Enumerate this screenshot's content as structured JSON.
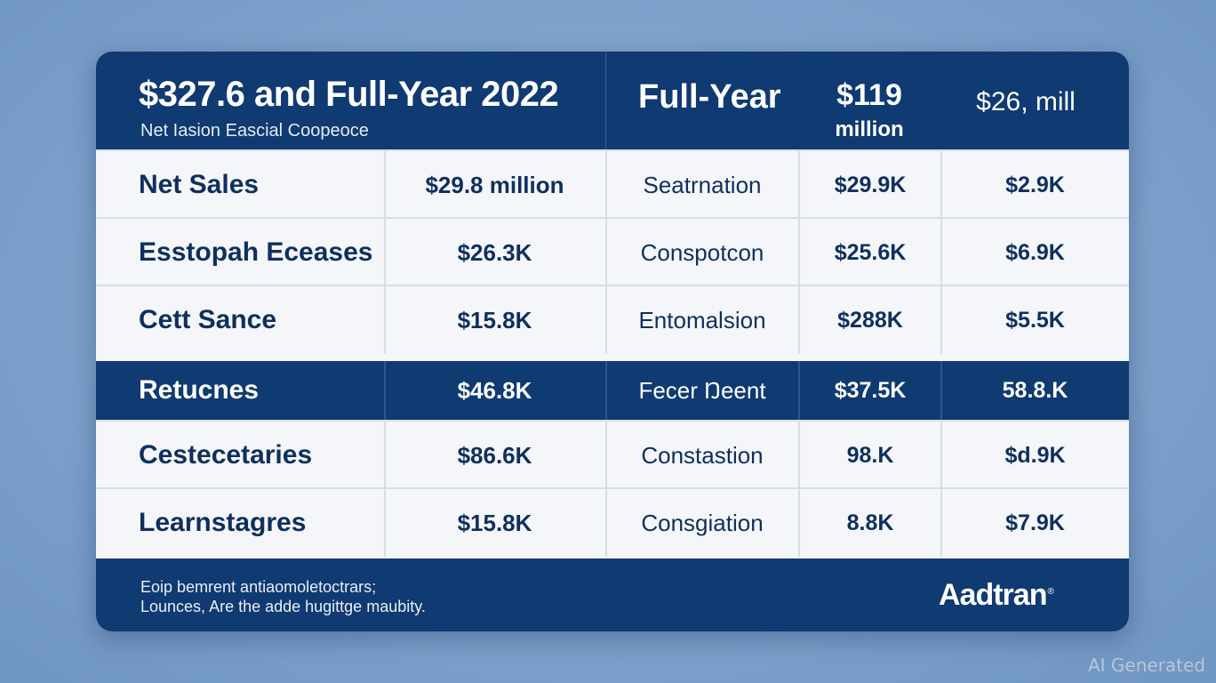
{
  "header": {
    "title": "$327.6 and Full-Year 2022",
    "subtitle": "Net Iasion Eascial Coopeoce",
    "col2": "Full-Year",
    "col3_value": "$119",
    "col3_unit": "million",
    "col4": "$26, mill"
  },
  "rows": [
    {
      "label": "Net Sales",
      "v1": "$29.8 million",
      "category": "Seatrnation",
      "v3": "$29.9K",
      "v4": "$2.9K",
      "dark": false
    },
    {
      "label": "Esstopah Eceases",
      "v1": "$26.3K",
      "category": "Conspotcon",
      "v3": "$25.6K",
      "v4": "$6.9K",
      "dark": false
    },
    {
      "label": "Cett Sance",
      "v1": "$15.8K",
      "category": "Entomalsion",
      "v3": "$288K",
      "v4": "$5.5K",
      "dark": false
    },
    {
      "label": "Retucnes",
      "v1": "$46.8K",
      "category": "Fecer Ŋeent",
      "v3": "$37.5K",
      "v4": "58.8.K",
      "dark": true
    },
    {
      "label": "Cestecetaries",
      "v1": "$86.6K",
      "category": "Constastion",
      "v3": "98.K",
      "v4": "$d.9K",
      "dark": false
    },
    {
      "label": "Learnstagres",
      "v1": "$15.8K",
      "category": "Consgiation",
      "v3": "8.8K",
      "v4": "$7.9K",
      "dark": false
    }
  ],
  "footer": {
    "line1": "Eoip bemrent antiaomoletoctrars;",
    "line2": "Lounces, Are the adde hugittge maubity.",
    "logo": "Aadtran",
    "logo_mark": "®"
  },
  "watermark": "AI Generated",
  "colors": {
    "navy": "#0f3a72",
    "row_bg": "#f4f6f9",
    "text_dark": "#0f2f5e",
    "background": "#7ea2cc"
  }
}
